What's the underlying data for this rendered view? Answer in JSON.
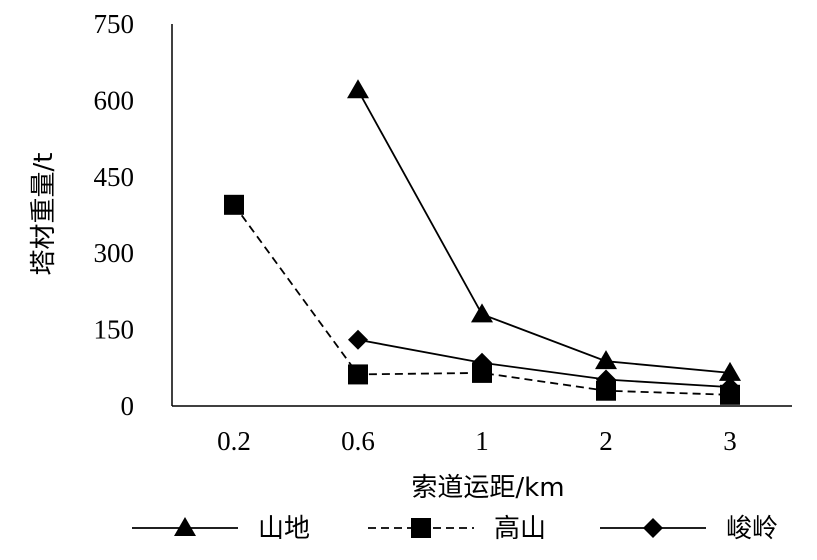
{
  "chart_data": {
    "type": "line",
    "categories": [
      "0.2",
      "0.6",
      "1",
      "2",
      "3"
    ],
    "xlabel": "索道运距/km",
    "ylabel": "塔材重量/t",
    "ylim": [
      0,
      750
    ],
    "yticks": [
      "0",
      "150",
      "300",
      "450",
      "600",
      "750"
    ],
    "grid": false,
    "legend_position": "bottom",
    "series": [
      {
        "name": "山地",
        "marker": "triangle",
        "dash": "solid",
        "color": "#000000",
        "values": [
          null,
          620,
          180,
          88,
          65
        ]
      },
      {
        "name": "高山",
        "marker": "square",
        "dash": "dashed",
        "color": "#000000",
        "values": [
          395,
          62,
          65,
          30,
          22
        ]
      },
      {
        "name": "峻岭",
        "marker": "diamond",
        "dash": "solid",
        "color": "#000000",
        "values": [
          null,
          130,
          85,
          52,
          37
        ]
      }
    ]
  }
}
